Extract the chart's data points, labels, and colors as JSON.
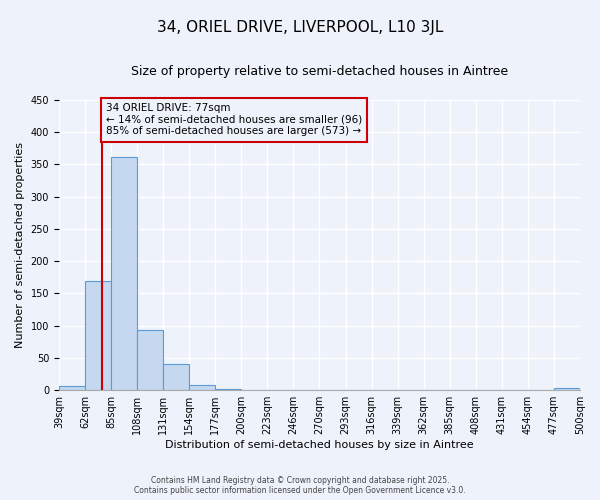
{
  "title": "34, ORIEL DRIVE, LIVERPOOL, L10 3JL",
  "subtitle": "Size of property relative to semi-detached houses in Aintree",
  "xlabel": "Distribution of semi-detached houses by size in Aintree",
  "ylabel": "Number of semi-detached properties",
  "bins": [
    "39sqm",
    "62sqm",
    "85sqm",
    "108sqm",
    "131sqm",
    "154sqm",
    "177sqm",
    "200sqm",
    "223sqm",
    "246sqm",
    "270sqm",
    "293sqm",
    "316sqm",
    "339sqm",
    "362sqm",
    "385sqm",
    "408sqm",
    "431sqm",
    "454sqm",
    "477sqm",
    "500sqm"
  ],
  "values": [
    7,
    170,
    362,
    93,
    41,
    8,
    2,
    0,
    0,
    0,
    0,
    0,
    0,
    0,
    0,
    0,
    0,
    0,
    0,
    3
  ],
  "bar_color": "#c5d8f0",
  "bar_edge_color": "#5b9bd5",
  "ylim": [
    0,
    450
  ],
  "yticks": [
    0,
    50,
    100,
    150,
    200,
    250,
    300,
    350,
    400,
    450
  ],
  "property_size": 77,
  "property_label": "34 ORIEL DRIVE: 77sqm",
  "pct_smaller": 14,
  "count_smaller": 96,
  "pct_larger": 85,
  "count_larger": 573,
  "vline_color": "#cc0000",
  "annotation_box_color": "#cc0000",
  "background_color": "#eef2fb",
  "grid_color": "#ffffff",
  "title_fontsize": 11,
  "subtitle_fontsize": 9,
  "axis_label_fontsize": 8,
  "tick_fontsize": 7,
  "annotation_fontsize": 7.5,
  "footer_fontsize": 5.5
}
